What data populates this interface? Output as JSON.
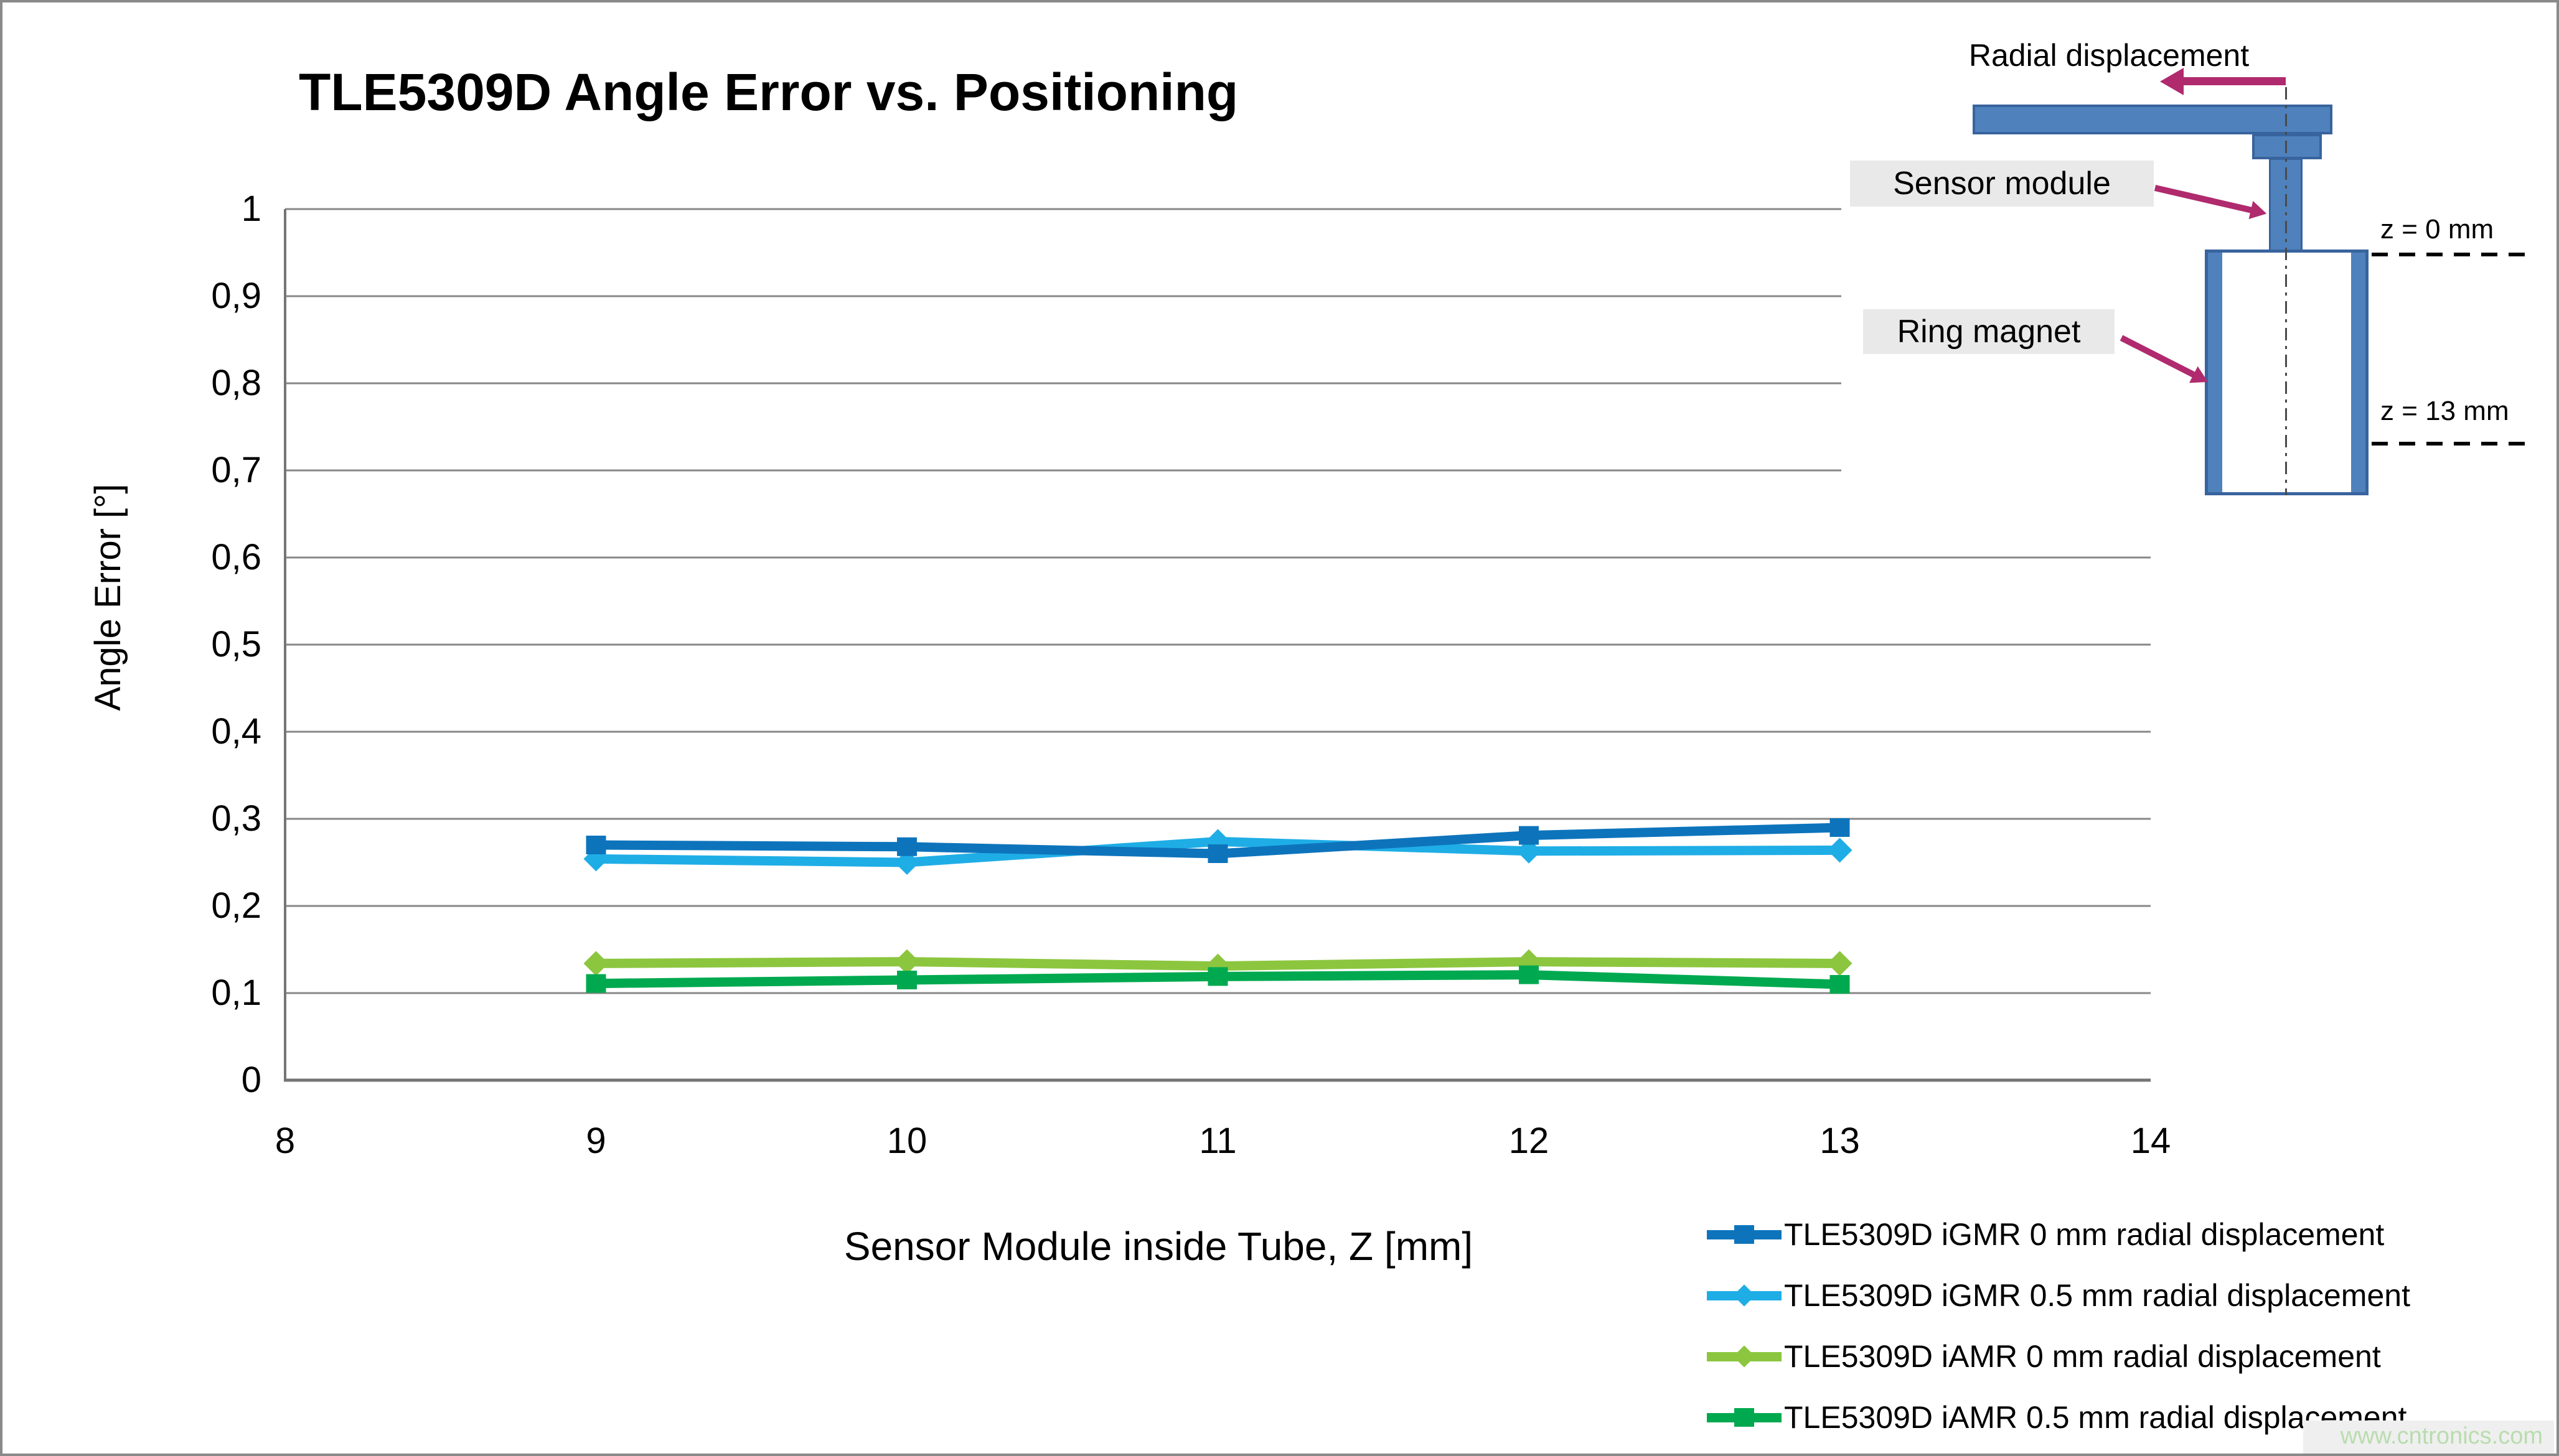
{
  "chart_data": {
    "type": "line",
    "title": "TLE5309D Angle Error vs. Positioning",
    "xlabel": "Sensor Module inside Tube, Z [mm]",
    "ylabel": "Angle Error [°]",
    "xlim": [
      8,
      14
    ],
    "ylim": [
      0,
      1
    ],
    "x_ticks": [
      "8",
      "9",
      "10",
      "11",
      "12",
      "13",
      "14"
    ],
    "x_tick_values": [
      8,
      9,
      10,
      11,
      12,
      13,
      14
    ],
    "y_ticks": [
      "0",
      "0,1",
      "0,2",
      "0,3",
      "0,4",
      "0,5",
      "0,6",
      "0,7",
      "0,8",
      "0,9",
      "1"
    ],
    "y_tick_values": [
      0,
      0.1,
      0.2,
      0.3,
      0.4,
      0.5,
      0.6,
      0.7,
      0.8,
      0.9,
      1
    ],
    "grid": "horizontal",
    "legend_position": "bottom-right",
    "x": [
      9,
      10,
      11,
      12,
      13
    ],
    "series": [
      {
        "name": "TLE5309D iGMR 0 mm radial displacement",
        "color": "#0d74bc",
        "marker": "square",
        "values": [
          0.27,
          0.268,
          0.26,
          0.281,
          0.29
        ]
      },
      {
        "name": "TLE5309D iGMR 0.5 mm radial displacement",
        "color": "#1fade6",
        "marker": "diamond",
        "values": [
          0.254,
          0.25,
          0.274,
          0.263,
          0.264
        ]
      },
      {
        "name": "TLE5309D iAMR 0 mm radial displacement",
        "color": "#8cc63f",
        "marker": "diamond",
        "values": [
          0.134,
          0.136,
          0.131,
          0.136,
          0.134
        ]
      },
      {
        "name": "TLE5309D iAMR 0.5 mm radial displacement",
        "color": "#00a94f",
        "marker": "square",
        "values": [
          0.111,
          0.115,
          0.119,
          0.121,
          0.11
        ]
      }
    ]
  },
  "diagram": {
    "radial_displacement_label": "Radial displacement",
    "sensor_module_label": "Sensor module",
    "ring_magnet_label": "Ring magnet",
    "z0_label": "z = 0 mm",
    "z13_label": "z = 13 mm",
    "shape_fill": "#4f81bd",
    "shape_border": "#38649e",
    "arrow_color": "#b02a6e",
    "label_bg": "#e9e9e9"
  },
  "watermark": {
    "text": "www.cntronics.com",
    "color": "#b9dcae"
  },
  "colors": {
    "gridline": "#878787",
    "axis": "#757575",
    "frame": "#8a8a8a"
  }
}
